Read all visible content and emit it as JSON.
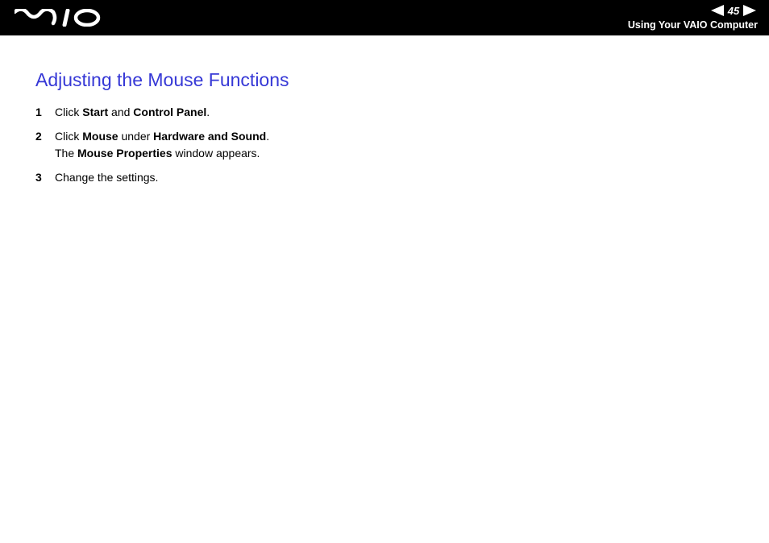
{
  "header": {
    "page_number": "45",
    "breadcrumb": "Using Your VAIO Computer",
    "nav_arrow_color": "#ffffff",
    "bg_color": "#000000"
  },
  "content": {
    "title": "Adjusting the Mouse Functions",
    "title_color": "#3638d6",
    "title_fontsize": 23,
    "body_fontsize": 14,
    "steps": [
      {
        "num": "1",
        "segments": [
          [
            {
              "t": "Click ",
              "b": false
            },
            {
              "t": "Start",
              "b": true
            },
            {
              "t": " and ",
              "b": false
            },
            {
              "t": "Control Panel",
              "b": true
            },
            {
              "t": ".",
              "b": false
            }
          ]
        ]
      },
      {
        "num": "2",
        "segments": [
          [
            {
              "t": "Click ",
              "b": false
            },
            {
              "t": "Mouse",
              "b": true
            },
            {
              "t": " under ",
              "b": false
            },
            {
              "t": "Hardware and Sound",
              "b": true
            },
            {
              "t": ".",
              "b": false
            }
          ],
          [
            {
              "t": "The ",
              "b": false
            },
            {
              "t": "Mouse Properties",
              "b": true
            },
            {
              "t": " window appears.",
              "b": false
            }
          ]
        ]
      },
      {
        "num": "3",
        "segments": [
          [
            {
              "t": "Change the settings.",
              "b": false
            }
          ]
        ]
      }
    ]
  }
}
